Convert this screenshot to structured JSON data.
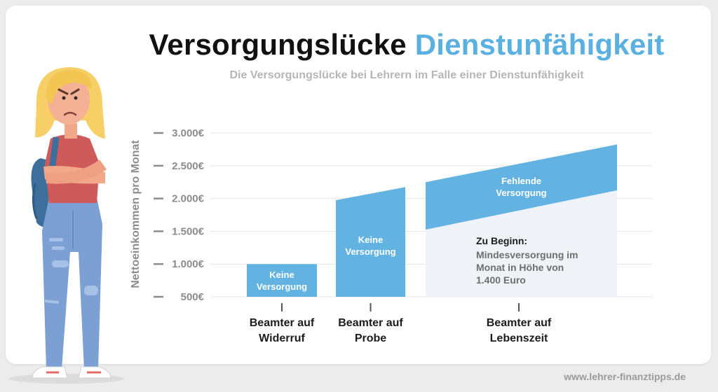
{
  "header": {
    "title_main": "Versorgungslücke",
    "title_accent": "Dienstunfähigkeit",
    "subtitle": "Die Versorgungslücke bei Lehrern im Falle einer Dienstunfähigkeit"
  },
  "footer": {
    "website": "www.lehrer-finanztipps.de"
  },
  "colors": {
    "accent": "#5ab0e0",
    "bar": "#62b3e1",
    "base_area": "#eff2f6",
    "axis_text": "#8c8c8c",
    "grid": "#e6e6e6",
    "title": "#111111",
    "subtitle": "#b6b6b6"
  },
  "illustration": {
    "name": "angry-teacher-illustration"
  },
  "chart_data": {
    "type": "bar",
    "ylabel": "Nettoeinkommen pro Monat",
    "ylim": [
      500,
      3000
    ],
    "yticks": [
      500,
      1000,
      1500,
      2000,
      2500,
      3000
    ],
    "yticklabels": [
      "500€",
      "1.000€",
      "1.500€",
      "2.000€",
      "2.500€",
      "3.000€"
    ],
    "grid": true,
    "categories": [
      "Beamter auf Widerruf",
      "Beamter auf Probe",
      "Beamter auf Lebenszeit"
    ],
    "category_lines": [
      [
        "Beamter auf",
        "Widerruf"
      ],
      [
        "Beamter auf",
        "Probe"
      ],
      [
        "Beamter auf",
        "Lebenszeit"
      ]
    ],
    "series": [
      {
        "values_start": [
          1000,
          1975,
          2250
        ],
        "values_end": [
          1000,
          2175,
          2825
        ]
      },
      {
        "values_start": [
          null,
          null,
          1525
        ],
        "values_end": [
          null,
          null,
          2125
        ]
      }
    ],
    "bar_labels": [
      [
        "Keine",
        "Versorgung"
      ],
      [
        "Keine",
        "Versorgung"
      ],
      [
        "Fehlende",
        "Versorgung"
      ]
    ],
    "annotation": {
      "heading": "Zu Beginn:",
      "lines": [
        "Mindesversorgung im",
        "Monat in Höhe von",
        "1.400 Euro"
      ]
    }
  }
}
